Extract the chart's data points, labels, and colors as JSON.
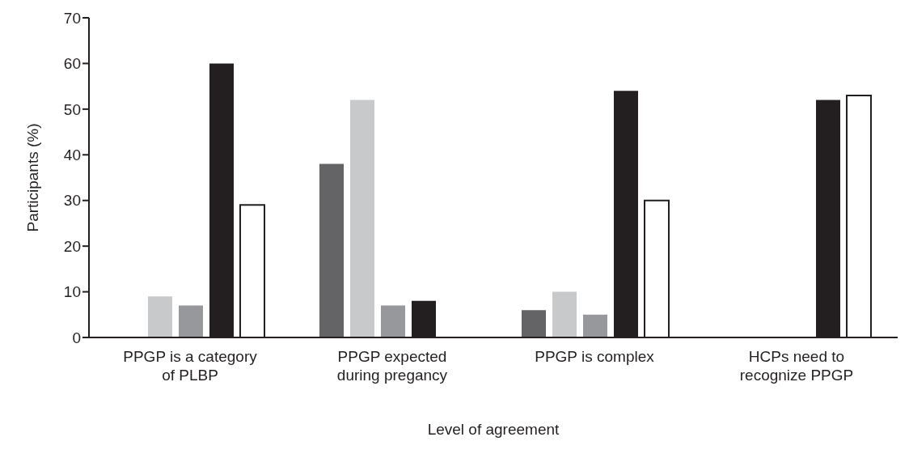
{
  "chart_data": {
    "type": "bar",
    "xlabel": "Level of agreement",
    "ylabel": "Participants (%)",
    "categories": [
      "PPGP is a category of PLBP",
      "PPGP expected during pregancy",
      "PPGP is complex",
      "HCPs need to recognize PPGP"
    ],
    "series": [
      {
        "color": "#646466",
        "values": [
          0,
          38,
          6,
          0
        ]
      },
      {
        "color": "#c8c9cb",
        "values": [
          9,
          52,
          10,
          0
        ]
      },
      {
        "color": "#97989b",
        "values": [
          7,
          7,
          5,
          0
        ]
      },
      {
        "color": "#231f20",
        "values": [
          60,
          8,
          54,
          52
        ]
      },
      {
        "color": "#ffffff",
        "values": [
          29,
          0,
          30,
          53
        ]
      }
    ],
    "ylim": [
      0,
      70
    ],
    "yticks": [
      0,
      10,
      20,
      30,
      40,
      50,
      60,
      70
    ],
    "grid": false,
    "legend": false
  }
}
